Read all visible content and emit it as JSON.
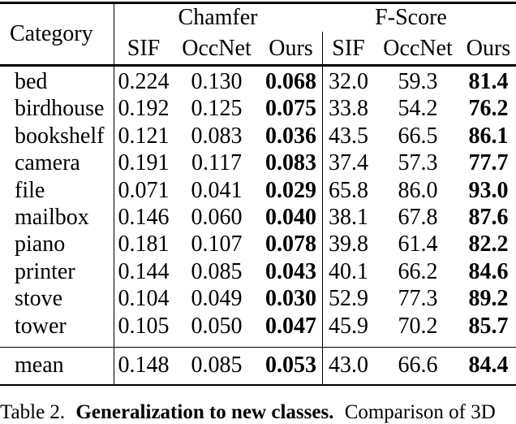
{
  "header": {
    "category": "Category",
    "groups": [
      {
        "label": "Chamfer",
        "subcols": [
          "SIF",
          "OccNet",
          "Ours"
        ]
      },
      {
        "label": "F-Score",
        "subcols": [
          "SIF",
          "OccNet",
          "Ours"
        ]
      }
    ]
  },
  "rows": [
    {
      "category": "bed",
      "values": [
        "0.224",
        "0.130",
        "0.068",
        "32.0",
        "59.3",
        "81.4"
      ]
    },
    {
      "category": "birdhouse",
      "values": [
        "0.192",
        "0.125",
        "0.075",
        "33.8",
        "54.2",
        "76.2"
      ]
    },
    {
      "category": "bookshelf",
      "values": [
        "0.121",
        "0.083",
        "0.036",
        "43.5",
        "66.5",
        "86.1"
      ]
    },
    {
      "category": "camera",
      "values": [
        "0.191",
        "0.117",
        "0.083",
        "37.4",
        "57.3",
        "77.7"
      ]
    },
    {
      "category": "file",
      "values": [
        "0.071",
        "0.041",
        "0.029",
        "65.8",
        "86.0",
        "93.0"
      ]
    },
    {
      "category": "mailbox",
      "values": [
        "0.146",
        "0.060",
        "0.040",
        "38.1",
        "67.8",
        "87.6"
      ]
    },
    {
      "category": "piano",
      "values": [
        "0.181",
        "0.107",
        "0.078",
        "39.8",
        "61.4",
        "82.2"
      ]
    },
    {
      "category": "printer",
      "values": [
        "0.144",
        "0.085",
        "0.043",
        "40.1",
        "66.2",
        "84.6"
      ]
    },
    {
      "category": "stove",
      "values": [
        "0.104",
        "0.049",
        "0.030",
        "52.9",
        "77.3",
        "89.2"
      ]
    },
    {
      "category": "tower",
      "values": [
        "0.105",
        "0.050",
        "0.047",
        "45.9",
        "70.2",
        "85.7"
      ]
    }
  ],
  "mean_row": {
    "category": "mean",
    "values": [
      "0.148",
      "0.085",
      "0.053",
      "43.0",
      "66.6",
      "84.4"
    ]
  },
  "bold_value_columns": [
    2,
    5
  ],
  "caption": {
    "table_label": "Table 2.",
    "bold_title": "Generalization to new classes.",
    "text": "Comparison of 3D"
  },
  "colors": {
    "text": "#000000",
    "background": "#ffffff",
    "rule": "#000000"
  }
}
